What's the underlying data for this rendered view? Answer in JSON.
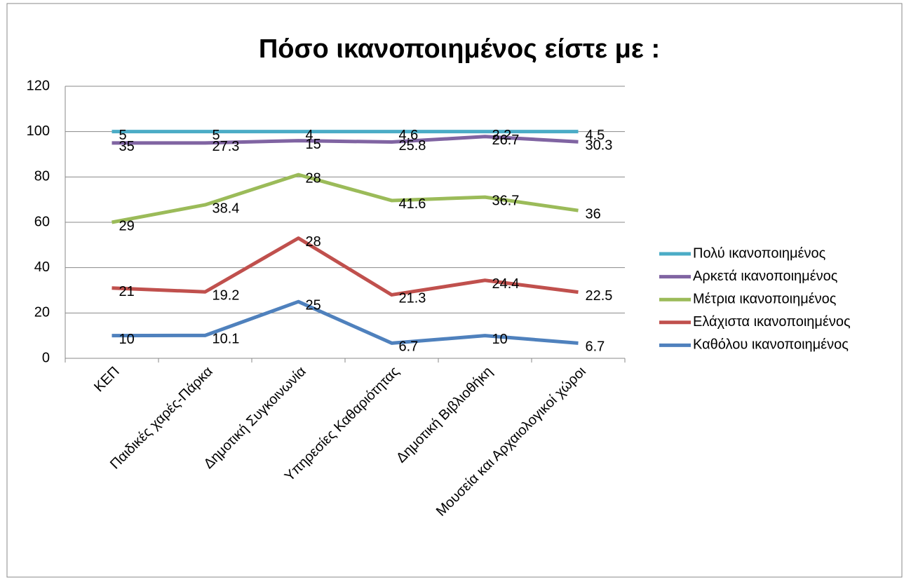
{
  "chart_data": {
    "type": "line",
    "stacked": true,
    "title": "Πόσο ικανοποιημένος είστε με :",
    "categories": [
      "ΚΕΠ",
      "Παιδικές χαρές-Πάρκα",
      "Δημοτική Συγκοινωνία",
      "Υπηρεσίες Καθαριότητας",
      "Δημοτική Βιβλιοθήκη",
      "Μουσεία και Αρχαιολογικοί χώροι"
    ],
    "series": [
      {
        "name": "Πολύ ικανοποιημένος",
        "color": "#4bacc6",
        "values": [
          5,
          5,
          4,
          4.6,
          2.2,
          4.5
        ]
      },
      {
        "name": "Αρκετά ικανοποιημένος",
        "color": "#8064a2",
        "values": [
          35,
          27.3,
          15,
          25.8,
          26.7,
          30.3
        ]
      },
      {
        "name": "Μέτρια ικανοποιημένος",
        "color": "#9bbb59",
        "values": [
          29,
          38.4,
          28,
          41.6,
          36.7,
          36
        ]
      },
      {
        "name": "Ελάχιστα ικανοποιημένος",
        "color": "#c0504d",
        "values": [
          21,
          19.2,
          28,
          21.3,
          24.4,
          22.5
        ]
      },
      {
        "name": "Καθόλου ικανοποιημένος",
        "color": "#4f81bd",
        "values": [
          10,
          10.1,
          25,
          6.7,
          10,
          6.7
        ]
      }
    ],
    "ylim": [
      0,
      120
    ],
    "yticks": [
      0,
      20,
      40,
      60,
      80,
      100,
      120
    ],
    "grid": true,
    "legend": "right"
  }
}
